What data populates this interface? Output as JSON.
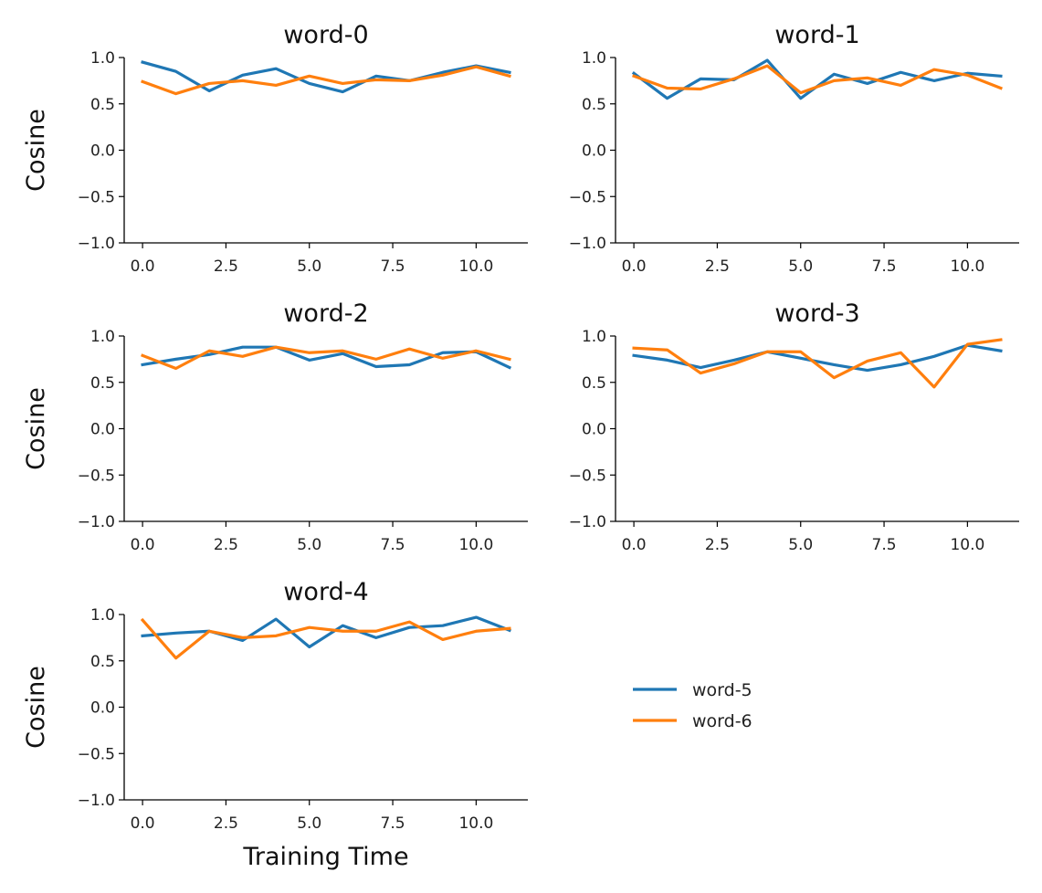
{
  "chart_data": [
    {
      "type": "line",
      "title": "word-0",
      "xlabel": "",
      "ylabel": "Cosine",
      "xlim": [
        -0.55,
        11.55
      ],
      "ylim": [
        -1.0,
        1.0
      ],
      "x_ticks": [
        "0.0",
        "2.5",
        "5.0",
        "7.5",
        "10.0"
      ],
      "y_ticks": [
        "1.0",
        "0.5",
        "0.0",
        "−0.5",
        "−1.0"
      ],
      "x": [
        0,
        1,
        2,
        3,
        4,
        5,
        6,
        7,
        8,
        9,
        10,
        11
      ],
      "series": [
        {
          "name": "word-5",
          "color": "#1f77b4",
          "values": [
            0.95,
            0.85,
            0.64,
            0.81,
            0.88,
            0.72,
            0.63,
            0.8,
            0.75,
            0.84,
            0.91,
            0.84
          ]
        },
        {
          "name": "word-6",
          "color": "#ff7f0e",
          "values": [
            0.74,
            0.61,
            0.72,
            0.75,
            0.7,
            0.8,
            0.72,
            0.76,
            0.75,
            0.81,
            0.9,
            0.8
          ]
        }
      ]
    },
    {
      "type": "line",
      "title": "word-1",
      "xlabel": "",
      "ylabel": "",
      "xlim": [
        -0.55,
        11.55
      ],
      "ylim": [
        -1.0,
        1.0
      ],
      "x_ticks": [
        "0.0",
        "2.5",
        "5.0",
        "7.5",
        "10.0"
      ],
      "y_ticks": [
        "1.0",
        "0.5",
        "0.0",
        "−0.5",
        "−1.0"
      ],
      "x": [
        0,
        1,
        2,
        3,
        4,
        5,
        6,
        7,
        8,
        9,
        10,
        11
      ],
      "series": [
        {
          "name": "word-5",
          "color": "#1f77b4",
          "values": [
            0.83,
            0.56,
            0.77,
            0.76,
            0.97,
            0.56,
            0.82,
            0.72,
            0.84,
            0.75,
            0.83,
            0.8
          ]
        },
        {
          "name": "word-6",
          "color": "#ff7f0e",
          "values": [
            0.8,
            0.67,
            0.66,
            0.77,
            0.91,
            0.62,
            0.75,
            0.78,
            0.7,
            0.87,
            0.81,
            0.67
          ]
        }
      ]
    },
    {
      "type": "line",
      "title": "word-2",
      "xlabel": "",
      "ylabel": "Cosine",
      "xlim": [
        -0.55,
        11.55
      ],
      "ylim": [
        -1.0,
        1.0
      ],
      "x_ticks": [
        "0.0",
        "2.5",
        "5.0",
        "7.5",
        "10.0"
      ],
      "y_ticks": [
        "1.0",
        "0.5",
        "0.0",
        "−0.5",
        "−1.0"
      ],
      "x": [
        0,
        1,
        2,
        3,
        4,
        5,
        6,
        7,
        8,
        9,
        10,
        11
      ],
      "series": [
        {
          "name": "word-5",
          "color": "#1f77b4",
          "values": [
            0.69,
            0.75,
            0.8,
            0.88,
            0.88,
            0.74,
            0.81,
            0.67,
            0.69,
            0.82,
            0.83,
            0.66
          ]
        },
        {
          "name": "word-6",
          "color": "#ff7f0e",
          "values": [
            0.79,
            0.65,
            0.84,
            0.78,
            0.88,
            0.82,
            0.84,
            0.75,
            0.86,
            0.76,
            0.84,
            0.75
          ]
        }
      ]
    },
    {
      "type": "line",
      "title": "word-3",
      "xlabel": "",
      "ylabel": "",
      "xlim": [
        -0.55,
        11.55
      ],
      "ylim": [
        -1.0,
        1.0
      ],
      "x_ticks": [
        "0.0",
        "2.5",
        "5.0",
        "7.5",
        "10.0"
      ],
      "y_ticks": [
        "1.0",
        "0.5",
        "0.0",
        "−0.5",
        "−1.0"
      ],
      "x": [
        0,
        1,
        2,
        3,
        4,
        5,
        6,
        7,
        8,
        9,
        10,
        11
      ],
      "series": [
        {
          "name": "word-5",
          "color": "#1f77b4",
          "values": [
            0.79,
            0.74,
            0.66,
            0.74,
            0.83,
            0.76,
            0.69,
            0.63,
            0.69,
            0.78,
            0.9,
            0.84
          ]
        },
        {
          "name": "word-6",
          "color": "#ff7f0e",
          "values": [
            0.87,
            0.85,
            0.6,
            0.7,
            0.83,
            0.83,
            0.55,
            0.73,
            0.82,
            0.45,
            0.91,
            0.96
          ]
        }
      ]
    },
    {
      "type": "line",
      "title": "word-4",
      "xlabel": "Training Time",
      "ylabel": "Cosine",
      "xlim": [
        -0.55,
        11.55
      ],
      "ylim": [
        -1.0,
        1.0
      ],
      "x_ticks": [
        "0.0",
        "2.5",
        "5.0",
        "7.5",
        "10.0"
      ],
      "y_ticks": [
        "1.0",
        "0.5",
        "0.0",
        "−0.5",
        "−1.0"
      ],
      "x": [
        0,
        1,
        2,
        3,
        4,
        5,
        6,
        7,
        8,
        9,
        10,
        11
      ],
      "series": [
        {
          "name": "word-5",
          "color": "#1f77b4",
          "values": [
            0.77,
            0.8,
            0.82,
            0.72,
            0.95,
            0.65,
            0.88,
            0.75,
            0.86,
            0.88,
            0.97,
            0.83
          ]
        },
        {
          "name": "word-6",
          "color": "#ff7f0e",
          "values": [
            0.94,
            0.53,
            0.82,
            0.75,
            0.77,
            0.86,
            0.82,
            0.82,
            0.92,
            0.73,
            0.82,
            0.85
          ]
        }
      ]
    }
  ],
  "legend": {
    "position": "center-right",
    "entries": [
      {
        "name": "word-5",
        "color": "#1f77b4"
      },
      {
        "name": "word-6",
        "color": "#ff7f0e"
      }
    ]
  }
}
